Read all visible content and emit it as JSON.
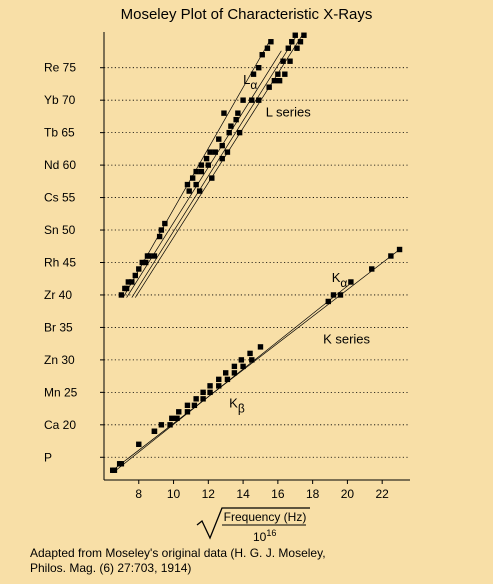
{
  "chart_data": {
    "type": "scatter",
    "title": "Moseley Plot of Characteristic X-Rays",
    "xlabel": "Frequency (Hz)",
    "xlabel_denominator": "10",
    "xlabel_exponent": "16",
    "x_ticks": [
      8,
      10,
      12,
      14,
      16,
      18,
      20,
      22
    ],
    "xlim": [
      6.0,
      23.6
    ],
    "ylim": [
      11.5,
      80.5
    ],
    "y_ticks": [
      {
        "label": "P",
        "z": 15
      },
      {
        "label": "Ca 20",
        "z": 20
      },
      {
        "label": "Mn 25",
        "z": 25
      },
      {
        "label": "Zn 30",
        "z": 30
      },
      {
        "label": "Br 35",
        "z": 35
      },
      {
        "label": "Zr 40",
        "z": 40
      },
      {
        "label": "Rh 45",
        "z": 45
      },
      {
        "label": "Sn 50",
        "z": 50
      },
      {
        "label": "Cs 55",
        "z": 55
      },
      {
        "label": "Nd 60",
        "z": 60
      },
      {
        "label": "Tb 65",
        "z": 65
      },
      {
        "label": "Yb 70",
        "z": 70
      },
      {
        "label": "Re 75",
        "z": 75
      }
    ],
    "grid": "dotted horizontal",
    "series": [
      {
        "points": [
          [
            6.5,
            13
          ],
          [
            6.9,
            14
          ],
          [
            8.0,
            17
          ],
          [
            8.9,
            19
          ],
          [
            9.3,
            20
          ],
          [
            9.9,
            21
          ],
          [
            10.3,
            22
          ],
          [
            10.8,
            23
          ],
          [
            11.3,
            24
          ],
          [
            11.7,
            25
          ],
          [
            12.1,
            26
          ],
          [
            12.6,
            27
          ],
          [
            13.0,
            28
          ],
          [
            13.5,
            29
          ],
          [
            13.9,
            30
          ],
          [
            14.4,
            31
          ],
          [
            15.0,
            32
          ],
          [
            18.9,
            39
          ],
          [
            19.6,
            40
          ],
          [
            21.4,
            44
          ],
          [
            22.5,
            46
          ],
          [
            23.0,
            47
          ]
        ]
      },
      {
        "points": [
          [
            6.6,
            13
          ],
          [
            7.0,
            14
          ],
          [
            8.9,
            19
          ],
          [
            9.8,
            20
          ],
          [
            10.2,
            21
          ],
          [
            10.8,
            22
          ],
          [
            11.2,
            23
          ],
          [
            11.7,
            24
          ],
          [
            12.1,
            25
          ],
          [
            12.6,
            26
          ],
          [
            13.1,
            27
          ],
          [
            13.5,
            28
          ],
          [
            14.0,
            29
          ],
          [
            14.5,
            30
          ],
          [
            19.2,
            40
          ],
          [
            20.2,
            42
          ]
        ]
      },
      {
        "points": [
          [
            7.0,
            40
          ],
          [
            7.3,
            41
          ],
          [
            7.6,
            42
          ],
          [
            7.8,
            43
          ],
          [
            8.0,
            44
          ],
          [
            8.2,
            45
          ],
          [
            8.5,
            46
          ],
          [
            8.9,
            46
          ],
          [
            9.3,
            50
          ],
          [
            9.5,
            51
          ],
          [
            10.8,
            57
          ],
          [
            11.1,
            58
          ],
          [
            11.3,
            59
          ],
          [
            11.6,
            60
          ],
          [
            11.9,
            61
          ],
          [
            12.1,
            62
          ],
          [
            12.6,
            64
          ],
          [
            12.9,
            68
          ],
          [
            13.3,
            66
          ],
          [
            13.7,
            68
          ],
          [
            14.0,
            70
          ],
          [
            14.6,
            74
          ],
          [
            14.9,
            75
          ],
          [
            15.1,
            77
          ],
          [
            15.4,
            78
          ],
          [
            15.6,
            79
          ]
        ]
      },
      {
        "points": [
          [
            7.2,
            41
          ],
          [
            7.4,
            42
          ],
          [
            8.4,
            45
          ],
          [
            8.6,
            46
          ],
          [
            9.2,
            49
          ],
          [
            10.9,
            56
          ],
          [
            11.3,
            57
          ],
          [
            11.6,
            59
          ],
          [
            12.0,
            60
          ],
          [
            12.4,
            62
          ],
          [
            12.8,
            63
          ],
          [
            13.2,
            65
          ],
          [
            13.6,
            67
          ],
          [
            14.5,
            70
          ],
          [
            15.5,
            72
          ],
          [
            15.8,
            73
          ],
          [
            16.0,
            74
          ],
          [
            16.3,
            76
          ],
          [
            16.6,
            78
          ],
          [
            16.8,
            79
          ],
          [
            17.0,
            80
          ]
        ]
      },
      {
        "points": [
          [
            11.5,
            56
          ],
          [
            12.2,
            58
          ],
          [
            12.8,
            61
          ],
          [
            13.1,
            62
          ],
          [
            13.8,
            65
          ],
          [
            14.9,
            70
          ],
          [
            16.1,
            73
          ],
          [
            16.4,
            74
          ],
          [
            16.7,
            76
          ],
          [
            17.1,
            78
          ],
          [
            17.3,
            79
          ],
          [
            17.5,
            80
          ]
        ]
      }
    ],
    "fit_lines": [
      {
        "from": [
          6.5,
          13
        ],
        "to": [
          23.1,
          47.2
        ]
      },
      {
        "from": [
          6.5,
          12.6
        ],
        "to": [
          20.2,
          41.8
        ]
      },
      {
        "from": [
          7.1,
          39.6
        ],
        "to": [
          15.5,
          79.0
        ]
      },
      {
        "from": [
          7.3,
          39.6
        ],
        "to": [
          16.2,
          77.6
        ]
      },
      {
        "from": [
          7.6,
          39.6
        ],
        "to": [
          17.0,
          79.6
        ]
      },
      {
        "from": [
          7.8,
          39.6
        ],
        "to": [
          17.4,
          80.0
        ]
      }
    ],
    "annotations": [
      {
        "text": "L",
        "sub": "α",
        "x": 14.0,
        "z": 72.5
      },
      {
        "text": "L series",
        "x": 15.3,
        "z": 67.5
      },
      {
        "text": "K",
        "sub": "α",
        "x": 19.1,
        "z": 42.0
      },
      {
        "text": "K series",
        "x": 18.6,
        "z": 32.5
      },
      {
        "text": "K",
        "sub": "β",
        "x": 13.2,
        "z": 22.7
      }
    ],
    "footer": [
      "Adapted from Moseley's original data (H. G. J. Moseley,",
      "Philos. Mag. (6) 27:703, 1914)"
    ]
  }
}
